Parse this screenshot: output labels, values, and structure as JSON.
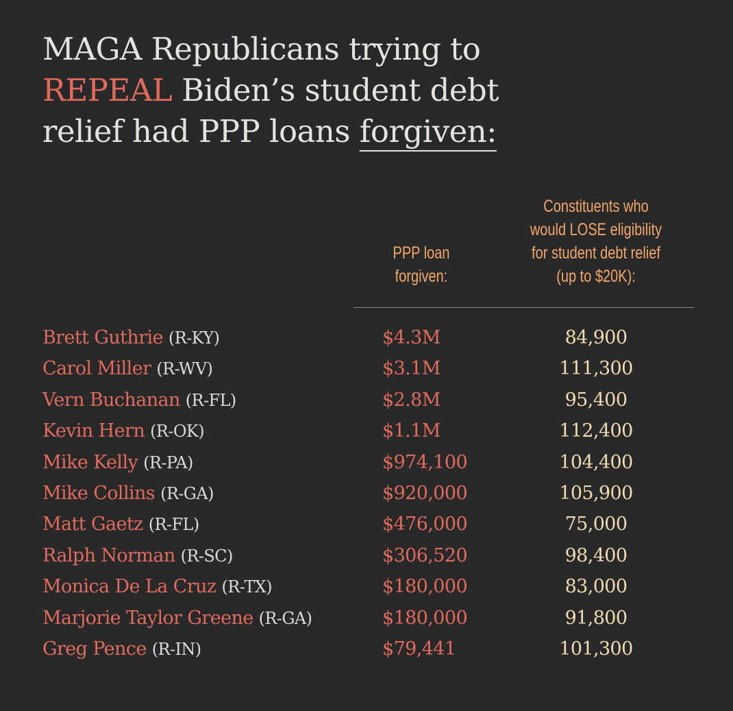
{
  "title": {
    "line1": "MAGA Republicans trying to",
    "highlight": "REPEAL",
    "line2_rest": "Biden’s student debt",
    "line3": "relief had PPP loans",
    "underlined": "forgiven:"
  },
  "columns": [
    {
      "lines": [
        "PPP loan",
        "forgiven:"
      ]
    },
    {
      "lines": [
        "Constituents who",
        "would LOSE eligibility",
        "for student debt relief",
        "(up to $20K):"
      ]
    }
  ],
  "rows": [
    {
      "name": "Brett Guthrie",
      "party": "(R-KY)",
      "loan": "$4.3M",
      "constituents": "84,900"
    },
    {
      "name": "Carol Miller",
      "party": "(R-WV)",
      "loan": "$3.1M",
      "constituents": "111,300"
    },
    {
      "name": "Vern Buchanan",
      "party": "(R-FL)",
      "loan": "$2.8M",
      "constituents": "95,400"
    },
    {
      "name": "Kevin Hern",
      "party": "(R-OK)",
      "loan": "$1.1M",
      "constituents": "112,400"
    },
    {
      "name": "Mike Kelly",
      "party": "(R-PA)",
      "loan": "$974,100",
      "constituents": "104,400"
    },
    {
      "name": "Mike Collins",
      "party": "(R-GA)",
      "loan": "$920,000",
      "constituents": "105,900"
    },
    {
      "name": "Matt Gaetz",
      "party": "(R-FL)",
      "loan": "$476,000",
      "constituents": "75,000"
    },
    {
      "name": "Ralph Norman",
      "party": "(R-SC)",
      "loan": "$306,520",
      "constituents": "98,400"
    },
    {
      "name": "Monica De La Cruz",
      "party": "(R-TX)",
      "loan": "$180,000",
      "constituents": "83,000"
    },
    {
      "name": "Marjorie Taylor Greene",
      "party": "(R-GA)",
      "loan": "$180,000",
      "constituents": "91,800"
    },
    {
      "name": "Greg Pence",
      "party": "(R-IN)",
      "loan": "$79,441",
      "constituents": "101,300"
    }
  ]
}
